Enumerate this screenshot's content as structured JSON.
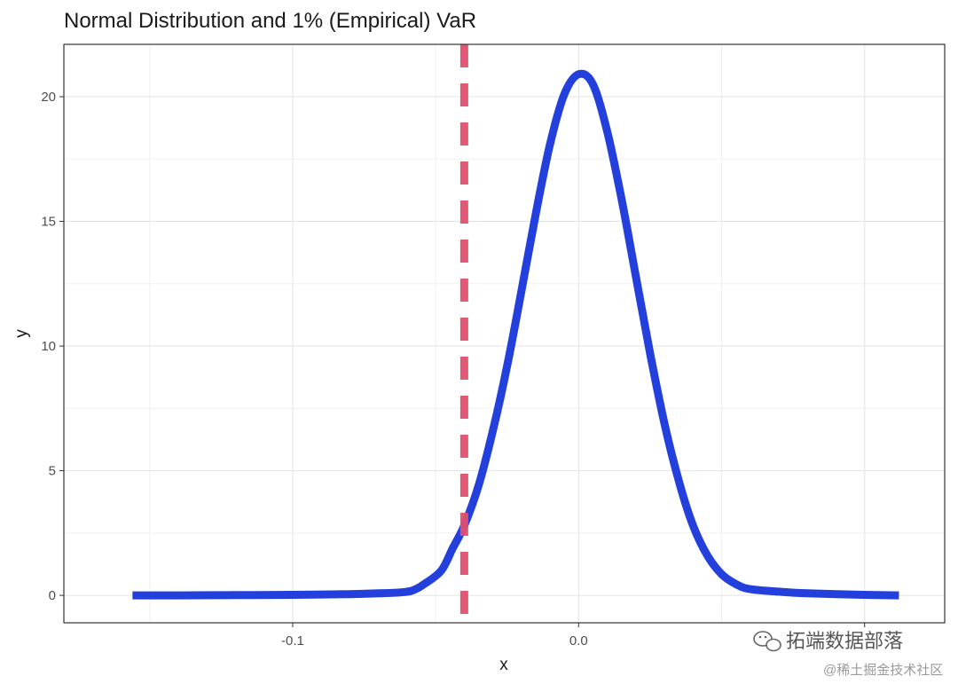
{
  "chart_data": {
    "type": "line",
    "title": "Normal Distribution and 1% (Empirical) VaR",
    "xlabel": "x",
    "ylabel": "y",
    "xlim": [
      -0.18,
      0.128
    ],
    "ylim": [
      -1.1,
      22.1
    ],
    "x_ticks": [
      -0.1,
      0.0,
      0.1
    ],
    "x_tick_labels": [
      "-0.1",
      "0.0",
      ""
    ],
    "y_ticks": [
      0,
      5,
      10,
      15,
      20
    ],
    "y_tick_labels": [
      "0",
      "5",
      "10",
      "15",
      "20"
    ],
    "grid": true,
    "legend": "none",
    "series": [
      {
        "color": "#2340dc",
        "x": [
          -0.156,
          -0.14,
          -0.12,
          -0.1,
          -0.08,
          -0.07,
          -0.062,
          -0.058,
          -0.054,
          -0.048,
          -0.044,
          -0.04,
          -0.035,
          -0.03,
          -0.025,
          -0.02,
          -0.015,
          -0.01,
          -0.005,
          0.0,
          0.005,
          0.01,
          0.015,
          0.02,
          0.025,
          0.03,
          0.035,
          0.04,
          0.045,
          0.05,
          0.055,
          0.06,
          0.07,
          0.08,
          0.1,
          0.112
        ],
        "y": [
          0.0,
          0.0,
          0.01,
          0.02,
          0.05,
          0.08,
          0.12,
          0.2,
          0.45,
          1.0,
          1.9,
          2.8,
          4.4,
          6.6,
          9.2,
          12.2,
          15.3,
          18.1,
          20.1,
          20.9,
          20.5,
          18.6,
          15.9,
          12.8,
          9.7,
          6.9,
          4.6,
          2.8,
          1.6,
          0.85,
          0.45,
          0.25,
          0.15,
          0.08,
          0.02,
          0.0
        ]
      }
    ],
    "annotations": [
      {
        "type": "vline",
        "x": -0.04,
        "style": "dashed",
        "color": "#e0506e"
      }
    ]
  },
  "watermark": {
    "icon": "wechat-icon",
    "text": "拓端数据部落",
    "subtext": "@稀土掘金技术社区"
  }
}
